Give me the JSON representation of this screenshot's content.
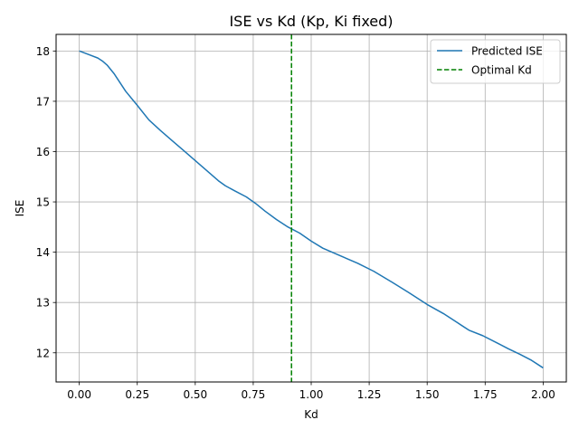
{
  "chart_data": {
    "type": "line",
    "title": "ISE vs Kd (Kp, Ki fixed)",
    "xlabel": "Kd",
    "ylabel": "ISE",
    "xlim": [
      -0.1,
      2.1
    ],
    "ylim": [
      11.42,
      18.33
    ],
    "x_ticks": [
      0.0,
      0.25,
      0.5,
      0.75,
      1.0,
      1.25,
      1.5,
      1.75,
      2.0
    ],
    "x_tick_labels": [
      "0.00",
      "0.25",
      "0.50",
      "0.75",
      "1.00",
      "1.25",
      "1.50",
      "1.75",
      "2.00"
    ],
    "y_ticks": [
      12,
      13,
      14,
      15,
      16,
      17,
      18
    ],
    "y_tick_labels": [
      "12",
      "13",
      "14",
      "15",
      "16",
      "17",
      "18"
    ],
    "grid": true,
    "legend_position": "top-right",
    "series": [
      {
        "name": "Predicted ISE",
        "color": "#1f77b4",
        "style": "solid",
        "x": [
          0.0,
          0.04,
          0.08,
          0.1,
          0.12,
          0.15,
          0.2,
          0.25,
          0.3,
          0.35,
          0.4,
          0.45,
          0.5,
          0.55,
          0.6,
          0.63,
          0.67,
          0.72,
          0.76,
          0.8,
          0.85,
          0.9,
          0.95,
          1.0,
          1.05,
          1.13,
          1.2,
          1.27,
          1.35,
          1.42,
          1.5,
          1.57,
          1.63,
          1.68,
          1.74,
          1.8,
          1.85,
          1.9,
          1.95,
          2.0
        ],
        "y": [
          18.0,
          17.93,
          17.86,
          17.8,
          17.72,
          17.55,
          17.2,
          16.92,
          16.63,
          16.42,
          16.22,
          16.02,
          15.82,
          15.62,
          15.42,
          15.32,
          15.22,
          15.1,
          14.97,
          14.82,
          14.65,
          14.5,
          14.38,
          14.22,
          14.08,
          13.92,
          13.78,
          13.62,
          13.4,
          13.2,
          12.96,
          12.78,
          12.6,
          12.45,
          12.34,
          12.2,
          12.08,
          11.97,
          11.85,
          11.7
        ]
      },
      {
        "name": "Optimal Kd",
        "color": "#008000",
        "style": "dashed",
        "type": "vline",
        "x": 0.915
      }
    ]
  }
}
